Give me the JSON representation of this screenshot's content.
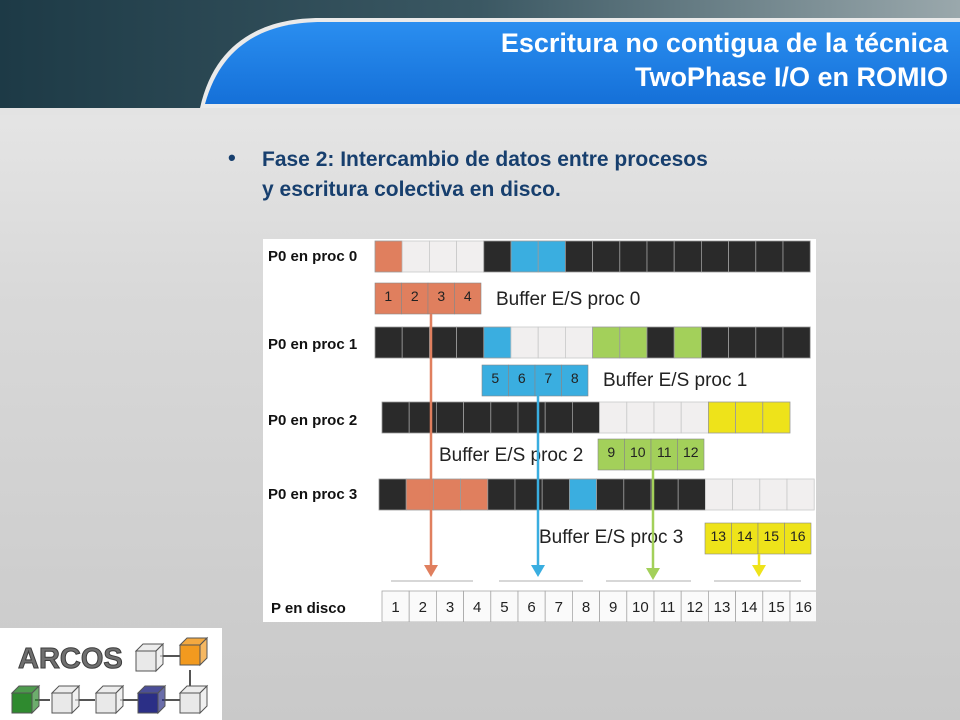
{
  "slide": {
    "title_line_1": "Escritura no contigua de la técnica",
    "title_line_2": "TwoPhase I/O en ROMIO",
    "bullet_line_1": "Fase 2: Intercambio de datos entre procesos",
    "bullet_line_2": "y escritura colectiva en disco.",
    "bullet_symbol": "•"
  },
  "colors": {
    "orange": "#e07f5e",
    "blue": "#3aaee0",
    "green": "#a3d05a",
    "yellow": "#eee31a",
    "black": "#2a2a2a",
    "empty": "#f1efef",
    "header_teal": "#1e3c48",
    "header_blue": "#1f86e8"
  },
  "diagram": {
    "process_rows": [
      {
        "label": "P0 en proc 0",
        "cells": [
          "orange",
          "empty",
          "empty",
          "empty",
          "black",
          "blue",
          "blue",
          "black",
          "black",
          "black",
          "black",
          "black",
          "black",
          "black",
          "black",
          "black",
          "black",
          "black",
          "black",
          "black"
        ]
      },
      {
        "label": "P0 en proc 1",
        "cells": [
          "black",
          "black",
          "black",
          "black",
          "blue",
          "empty",
          "empty",
          "empty",
          "green",
          "green",
          "black",
          "green",
          "black",
          "black",
          "black",
          "black",
          "black",
          "black",
          "black",
          "black"
        ]
      },
      {
        "label": "P0 en proc 2",
        "cells": [
          "black",
          "black",
          "black",
          "black",
          "black",
          "black",
          "black",
          "black",
          "empty",
          "empty",
          "empty",
          "empty",
          "yellow",
          "yellow",
          "yellow",
          "yellow"
        ]
      },
      {
        "label": "P0 en proc 3",
        "cells": [
          "black",
          "orange",
          "orange",
          "orange",
          "black",
          "black",
          "black",
          "blue",
          "black",
          "black",
          "black",
          "black",
          "empty",
          "empty",
          "empty",
          "empty"
        ]
      }
    ],
    "buffers": [
      {
        "label": "Buffer E/S proc 0",
        "values": [
          "1",
          "2",
          "3",
          "4"
        ],
        "color": "orange"
      },
      {
        "label": "Buffer E/S proc 1",
        "values": [
          "5",
          "6",
          "7",
          "8"
        ],
        "color": "blue"
      },
      {
        "label": "Buffer E/S proc 2",
        "values": [
          "9",
          "10",
          "11",
          "12"
        ],
        "color": "green"
      },
      {
        "label": "Buffer E/S proc 3",
        "values": [
          "13",
          "14",
          "15",
          "16"
        ],
        "color": "yellow"
      }
    ],
    "disk_label": "P en disco",
    "disk_values": [
      "1",
      "2",
      "3",
      "4",
      "5",
      "6",
      "7",
      "8",
      "9",
      "10",
      "11",
      "12",
      "13",
      "14",
      "15",
      "16"
    ]
  },
  "logo": {
    "text": "ARCOS",
    "cube_colors": [
      "#e9e9e9",
      "#f29a1f",
      "#2f8a2f",
      "#e9e9e9",
      "#e9e9e9",
      "#2b2f86",
      "#e9e9e9"
    ]
  }
}
